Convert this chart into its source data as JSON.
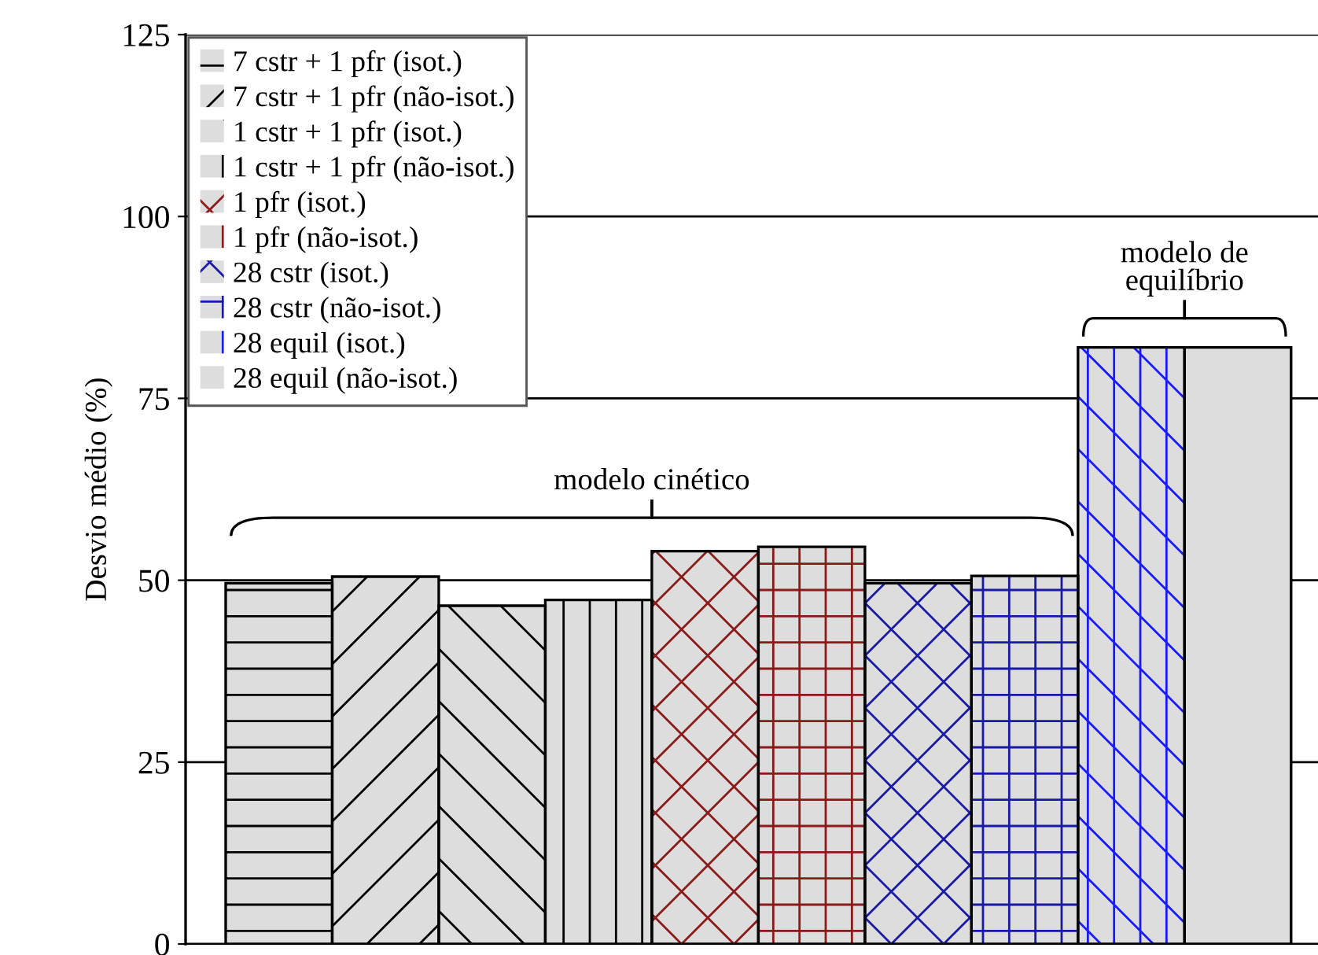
{
  "chart_data": {
    "type": "bar",
    "ylabel": "Desvio médio (%)",
    "categories": [
      null
    ],
    "series": [
      {
        "name": "7 cstr + 1 pfr (isot.)",
        "color": "#dddddd",
        "values": [
          49.6
        ]
      },
      {
        "name": "7 cstr + 1 pfr (não-isot.)",
        "color": "#dddddd",
        "values": [
          50.5
        ]
      },
      {
        "name": "1 cstr + 1 pfr (isot.)",
        "color": "#dddddd",
        "values": [
          46.5
        ]
      },
      {
        "name": "1 cstr + 1 pfr (não-isot.)",
        "color": "#dddddd",
        "values": [
          47.3
        ]
      },
      {
        "name": "1 pfr (isot.)",
        "color": "#dddddd",
        "values": [
          54.0
        ]
      },
      {
        "name": "1 pfr (não-isot.)",
        "color": "#dddddd",
        "values": [
          54.6
        ]
      },
      {
        "name": "28 cstr (isot.)",
        "color": "#dddddd",
        "values": [
          49.6
        ]
      },
      {
        "name": "28 cstr (não-isot.)",
        "color": "#dddddd",
        "values": [
          50.6
        ]
      },
      {
        "name": "28 equil (isot.)",
        "color": "#dddddd",
        "values": [
          82.0
        ]
      },
      {
        "name": "28 equil (não-isot.)",
        "color": "#dddddd",
        "values": [
          82.0
        ]
      }
    ],
    "ylim": [
      0,
      125
    ],
    "yticks": [
      0,
      25,
      50,
      75,
      100,
      125
    ],
    "grid": "y",
    "legend": "top left",
    "annotations": [
      "modelo cinético",
      "modelo de\nequilíbrio"
    ]
  }
}
